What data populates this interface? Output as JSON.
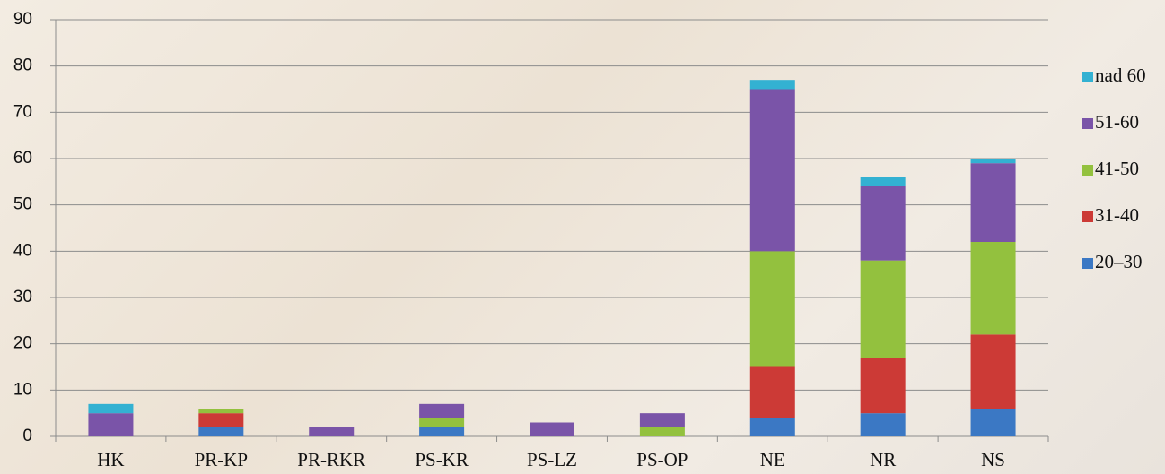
{
  "chart_data": {
    "type": "stacked_bar",
    "categories": [
      "HK",
      "PR-KP",
      "PR-RKR",
      "PS-KR",
      "PS-LZ",
      "PS-OP",
      "NE",
      "NR",
      "NS"
    ],
    "series": [
      {
        "name": "20–30",
        "color": "#3b78c4",
        "values": [
          0,
          2,
          0,
          2,
          0,
          0,
          4,
          5,
          6
        ]
      },
      {
        "name": "31-40",
        "color": "#cc3a36",
        "values": [
          0,
          3,
          0,
          0,
          0,
          0,
          11,
          12,
          16
        ]
      },
      {
        "name": "41-50",
        "color": "#93c13e",
        "values": [
          0,
          1,
          0,
          2,
          0,
          2,
          25,
          21,
          20
        ]
      },
      {
        "name": "51-60",
        "color": "#7a54a8",
        "values": [
          5,
          0,
          2,
          3,
          3,
          3,
          35,
          16,
          17
        ]
      },
      {
        "name": "nad 60",
        "color": "#33b1d2",
        "values": [
          2,
          0,
          0,
          0,
          0,
          0,
          2,
          2,
          1
        ]
      }
    ],
    "ylim": [
      0,
      90
    ],
    "yticks": [
      0,
      10,
      20,
      30,
      40,
      50,
      60,
      70,
      80,
      90
    ],
    "grid": true,
    "legend": "right"
  }
}
